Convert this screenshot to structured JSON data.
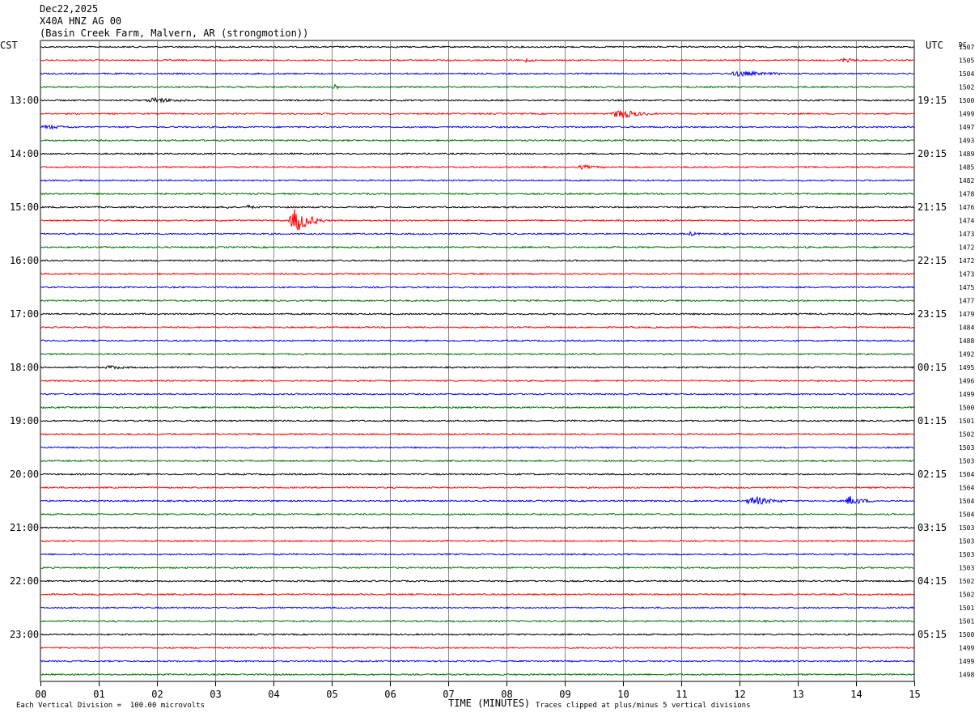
{
  "header": {
    "date": "Dec22,2025",
    "station": "X40A HNZ AG 00",
    "location": "(Basin Creek Farm, Malvern, AR (strongmotion))"
  },
  "chart_data": {
    "type": "line",
    "title": "",
    "xlabel": "TIME (MINUTES)",
    "left_axis_label": "CST",
    "right_axis_label": "UTC",
    "dc_label": "DC",
    "xlim": [
      0,
      15
    ],
    "x_ticks": [
      "00",
      "01",
      "02",
      "03",
      "04",
      "05",
      "06",
      "07",
      "08",
      "09",
      "10",
      "11",
      "12",
      "13",
      "14",
      "15"
    ],
    "grid": true,
    "trace_colors": [
      "#000000",
      "#ff0000",
      "#0000ff",
      "#007000"
    ],
    "trace_count": 48,
    "left_hour_labels": [
      "13:00",
      "14:00",
      "15:00",
      "16:00",
      "17:00",
      "18:00",
      "19:00",
      "20:00",
      "21:00",
      "22:00",
      "23:00"
    ],
    "right_hour_labels": [
      "19:15",
      "20:15",
      "21:15",
      "22:15",
      "23:15",
      "00:15",
      "01:15",
      "02:15",
      "03:15",
      "04:15",
      "05:15"
    ],
    "dc_values": [
      "1507",
      "1505",
      "1504",
      "1502",
      "1500",
      "1499",
      "1497",
      "1493",
      "1489",
      "1485",
      "1482",
      "1478",
      "1476",
      "1474",
      "1473",
      "1472",
      "1472",
      "1473",
      "1475",
      "1477",
      "1479",
      "1484",
      "1488",
      "1492",
      "1495",
      "1496",
      "1499",
      "1500",
      "1501",
      "1502",
      "1503",
      "1503",
      "1504",
      "1504",
      "1504",
      "1504",
      "1503",
      "1503",
      "1503",
      "1503",
      "1502",
      "1502",
      "1501",
      "1501",
      "1500",
      "1499",
      "1499",
      "1498"
    ],
    "events": [
      {
        "trace": 1,
        "start_min": 8.3,
        "end_min": 8.5,
        "amplitude": 2
      },
      {
        "trace": 1,
        "start_min": 13.7,
        "end_min": 14.2,
        "amplitude": 2
      },
      {
        "trace": 2,
        "start_min": 11.8,
        "end_min": 12.8,
        "amplitude": 3
      },
      {
        "trace": 3,
        "start_min": 5.0,
        "end_min": 5.2,
        "amplitude": 3
      },
      {
        "trace": 4,
        "start_min": 1.8,
        "end_min": 2.6,
        "amplitude": 3
      },
      {
        "trace": 5,
        "start_min": 9.8,
        "end_min": 10.5,
        "amplitude": 7
      },
      {
        "trace": 6,
        "start_min": 0.0,
        "end_min": 0.7,
        "amplitude": 2
      },
      {
        "trace": 9,
        "start_min": 9.2,
        "end_min": 9.7,
        "amplitude": 2
      },
      {
        "trace": 12,
        "start_min": 3.2,
        "end_min": 3.3,
        "amplitude": 3
      },
      {
        "trace": 12,
        "start_min": 3.5,
        "end_min": 3.8,
        "amplitude": 2
      },
      {
        "trace": 13,
        "start_min": 4.25,
        "end_min": 4.9,
        "amplitude": 16
      },
      {
        "trace": 14,
        "start_min": 11.1,
        "end_min": 11.4,
        "amplitude": 2
      },
      {
        "trace": 24,
        "start_min": 1.1,
        "end_min": 1.6,
        "amplitude": 2
      },
      {
        "trace": 34,
        "start_min": 12.1,
        "end_min": 12.8,
        "amplitude": 6
      },
      {
        "trace": 34,
        "start_min": 13.8,
        "end_min": 14.3,
        "amplitude": 6
      }
    ]
  },
  "footer": {
    "division_note": "Each Vertical Division =  100.00 microvolts",
    "clip_note": "Traces clipped at plus/minus 5 vertical divisions"
  }
}
